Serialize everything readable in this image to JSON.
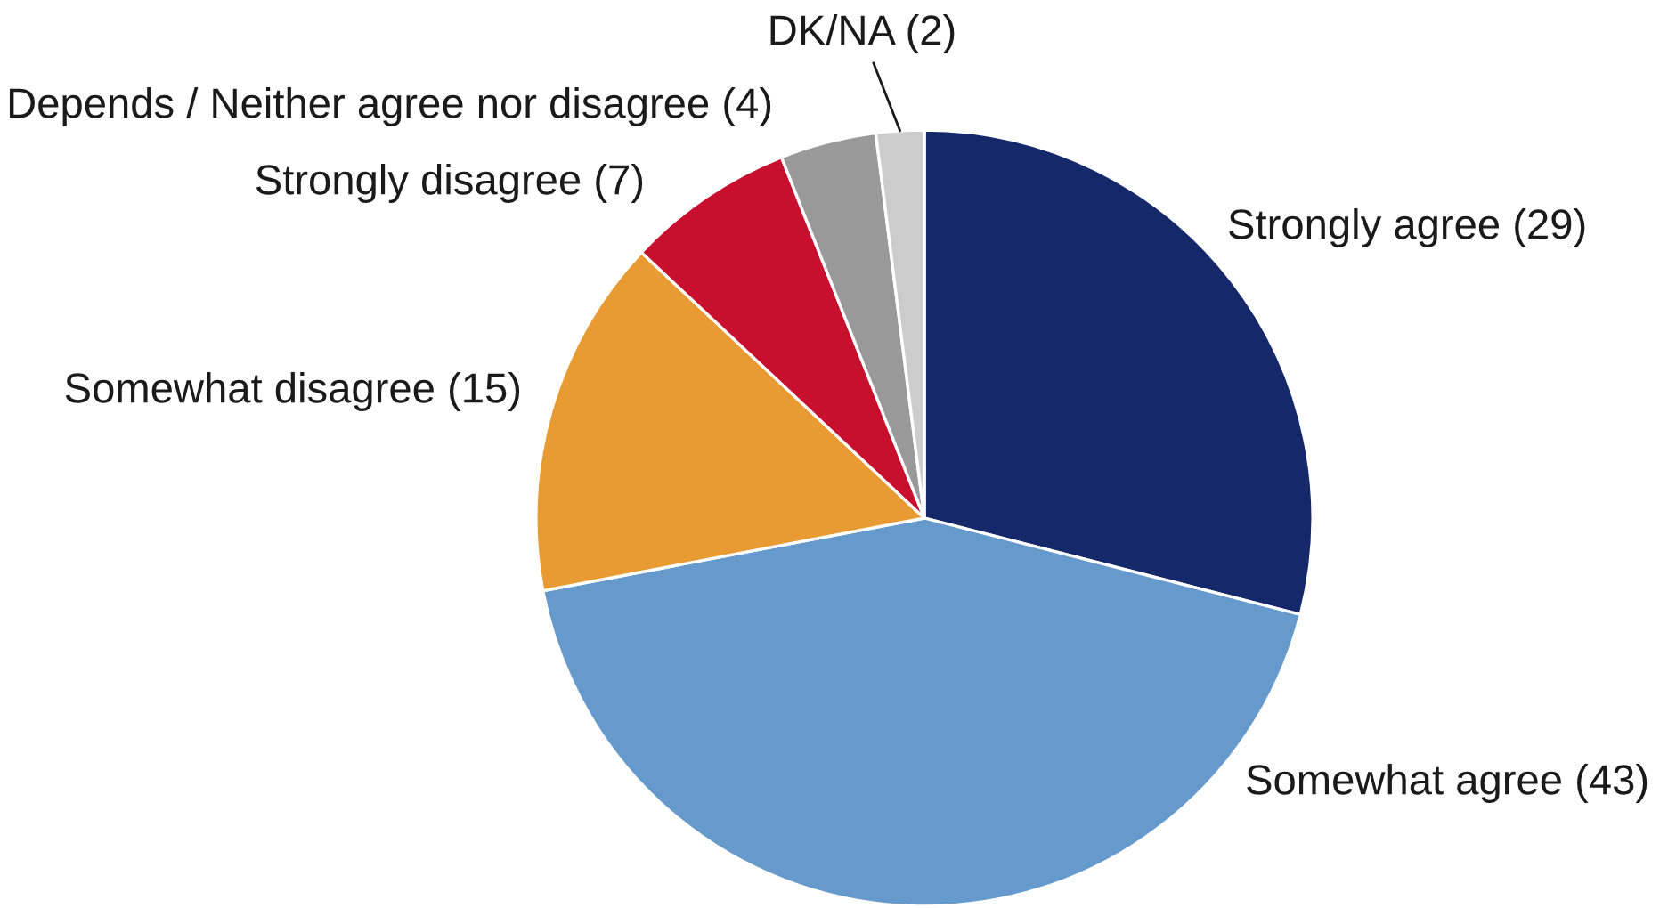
{
  "chart_data": {
    "type": "pie",
    "categories": [
      "Strongly agree (29)",
      "Somewhat agree (43)",
      "Somewhat disagree (15)",
      "Strongly disagree (7)",
      "Depends / Neither agree nor disagree (4)",
      "DK/NA (2)"
    ],
    "values": [
      29,
      43,
      15,
      7,
      4,
      2
    ],
    "colors": [
      "#15286a",
      "#6699cc",
      "#e89b33",
      "#c8102e",
      "#999999",
      "#cccccc"
    ]
  }
}
